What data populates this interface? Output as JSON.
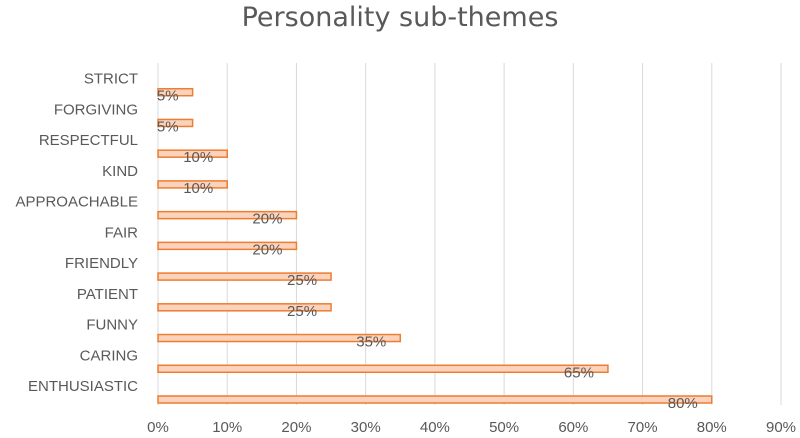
{
  "chart_data": {
    "type": "bar",
    "orientation": "horizontal",
    "title": "Personality sub-themes",
    "categories": [
      "ENTHUSIASTIC",
      "CARING",
      "FUNNY",
      "PATIENT",
      "FRIENDLY",
      "FAIR",
      "APPROACHABLE",
      "KIND",
      "RESPECTFUL",
      "FORGIVING",
      "STRICT"
    ],
    "values": [
      80,
      65,
      35,
      25,
      25,
      20,
      20,
      10,
      10,
      5,
      5
    ],
    "data_labels": [
      "80%",
      "65%",
      "35%",
      "25%",
      "25%",
      "20%",
      "20%",
      "10%",
      "10%",
      "5%",
      "5%"
    ],
    "x_ticks": [
      "0%",
      "10%",
      "20%",
      "30%",
      "40%",
      "50%",
      "60%",
      "70%",
      "80%",
      "90%"
    ],
    "xlim": [
      0,
      90
    ],
    "grid": "vertical",
    "legend": "none",
    "colors": {
      "bar_fill": "#fbd3bd",
      "bar_stroke": "#ed7d31",
      "grid": "#d9d9d9",
      "text": "#595959"
    }
  }
}
